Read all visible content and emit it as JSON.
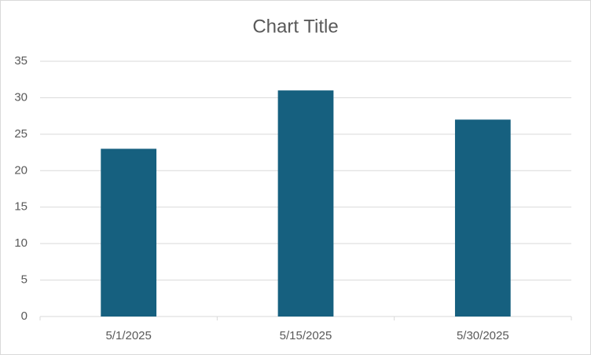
{
  "chart_data": {
    "type": "bar",
    "title": "Chart Title",
    "categories": [
      "5/1/2025",
      "5/15/2025",
      "5/30/2025"
    ],
    "values": [
      23,
      31,
      27
    ],
    "color": "#16607f",
    "ylim": [
      0,
      35
    ],
    "yticks": [
      0,
      5,
      10,
      15,
      20,
      25,
      30,
      35
    ],
    "grid": true
  }
}
